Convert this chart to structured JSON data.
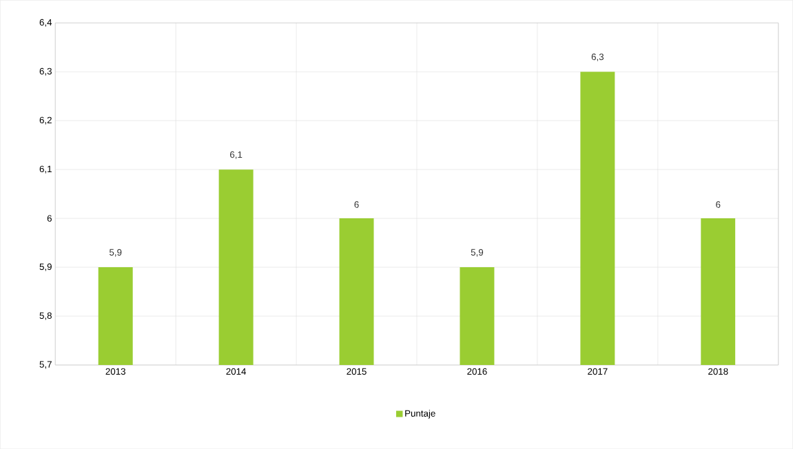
{
  "chart_data": {
    "type": "bar",
    "categories": [
      "2013",
      "2014",
      "2015",
      "2016",
      "2017",
      "2018"
    ],
    "series": [
      {
        "name": "Puntaje",
        "color": "#9acd32",
        "values": [
          5.9,
          6.1,
          6.0,
          5.9,
          6.3,
          6.0
        ],
        "value_labels": [
          "5,9",
          "6,1",
          "6",
          "5,9",
          "6,3",
          "6"
        ]
      }
    ],
    "ylim": [
      5.7,
      6.4
    ],
    "yticks": [
      {
        "value": 5.7,
        "label": "5,7"
      },
      {
        "value": 5.8,
        "label": "5,8"
      },
      {
        "value": 5.9,
        "label": "5,9"
      },
      6,
      {
        "value": 6.1,
        "label": "6,1"
      },
      {
        "value": 6.2,
        "label": "6,2"
      },
      {
        "value": 6.3,
        "label": "6,3"
      },
      {
        "value": 6.4,
        "label": "6,4"
      }
    ],
    "grid": true,
    "legend": "bottom"
  }
}
